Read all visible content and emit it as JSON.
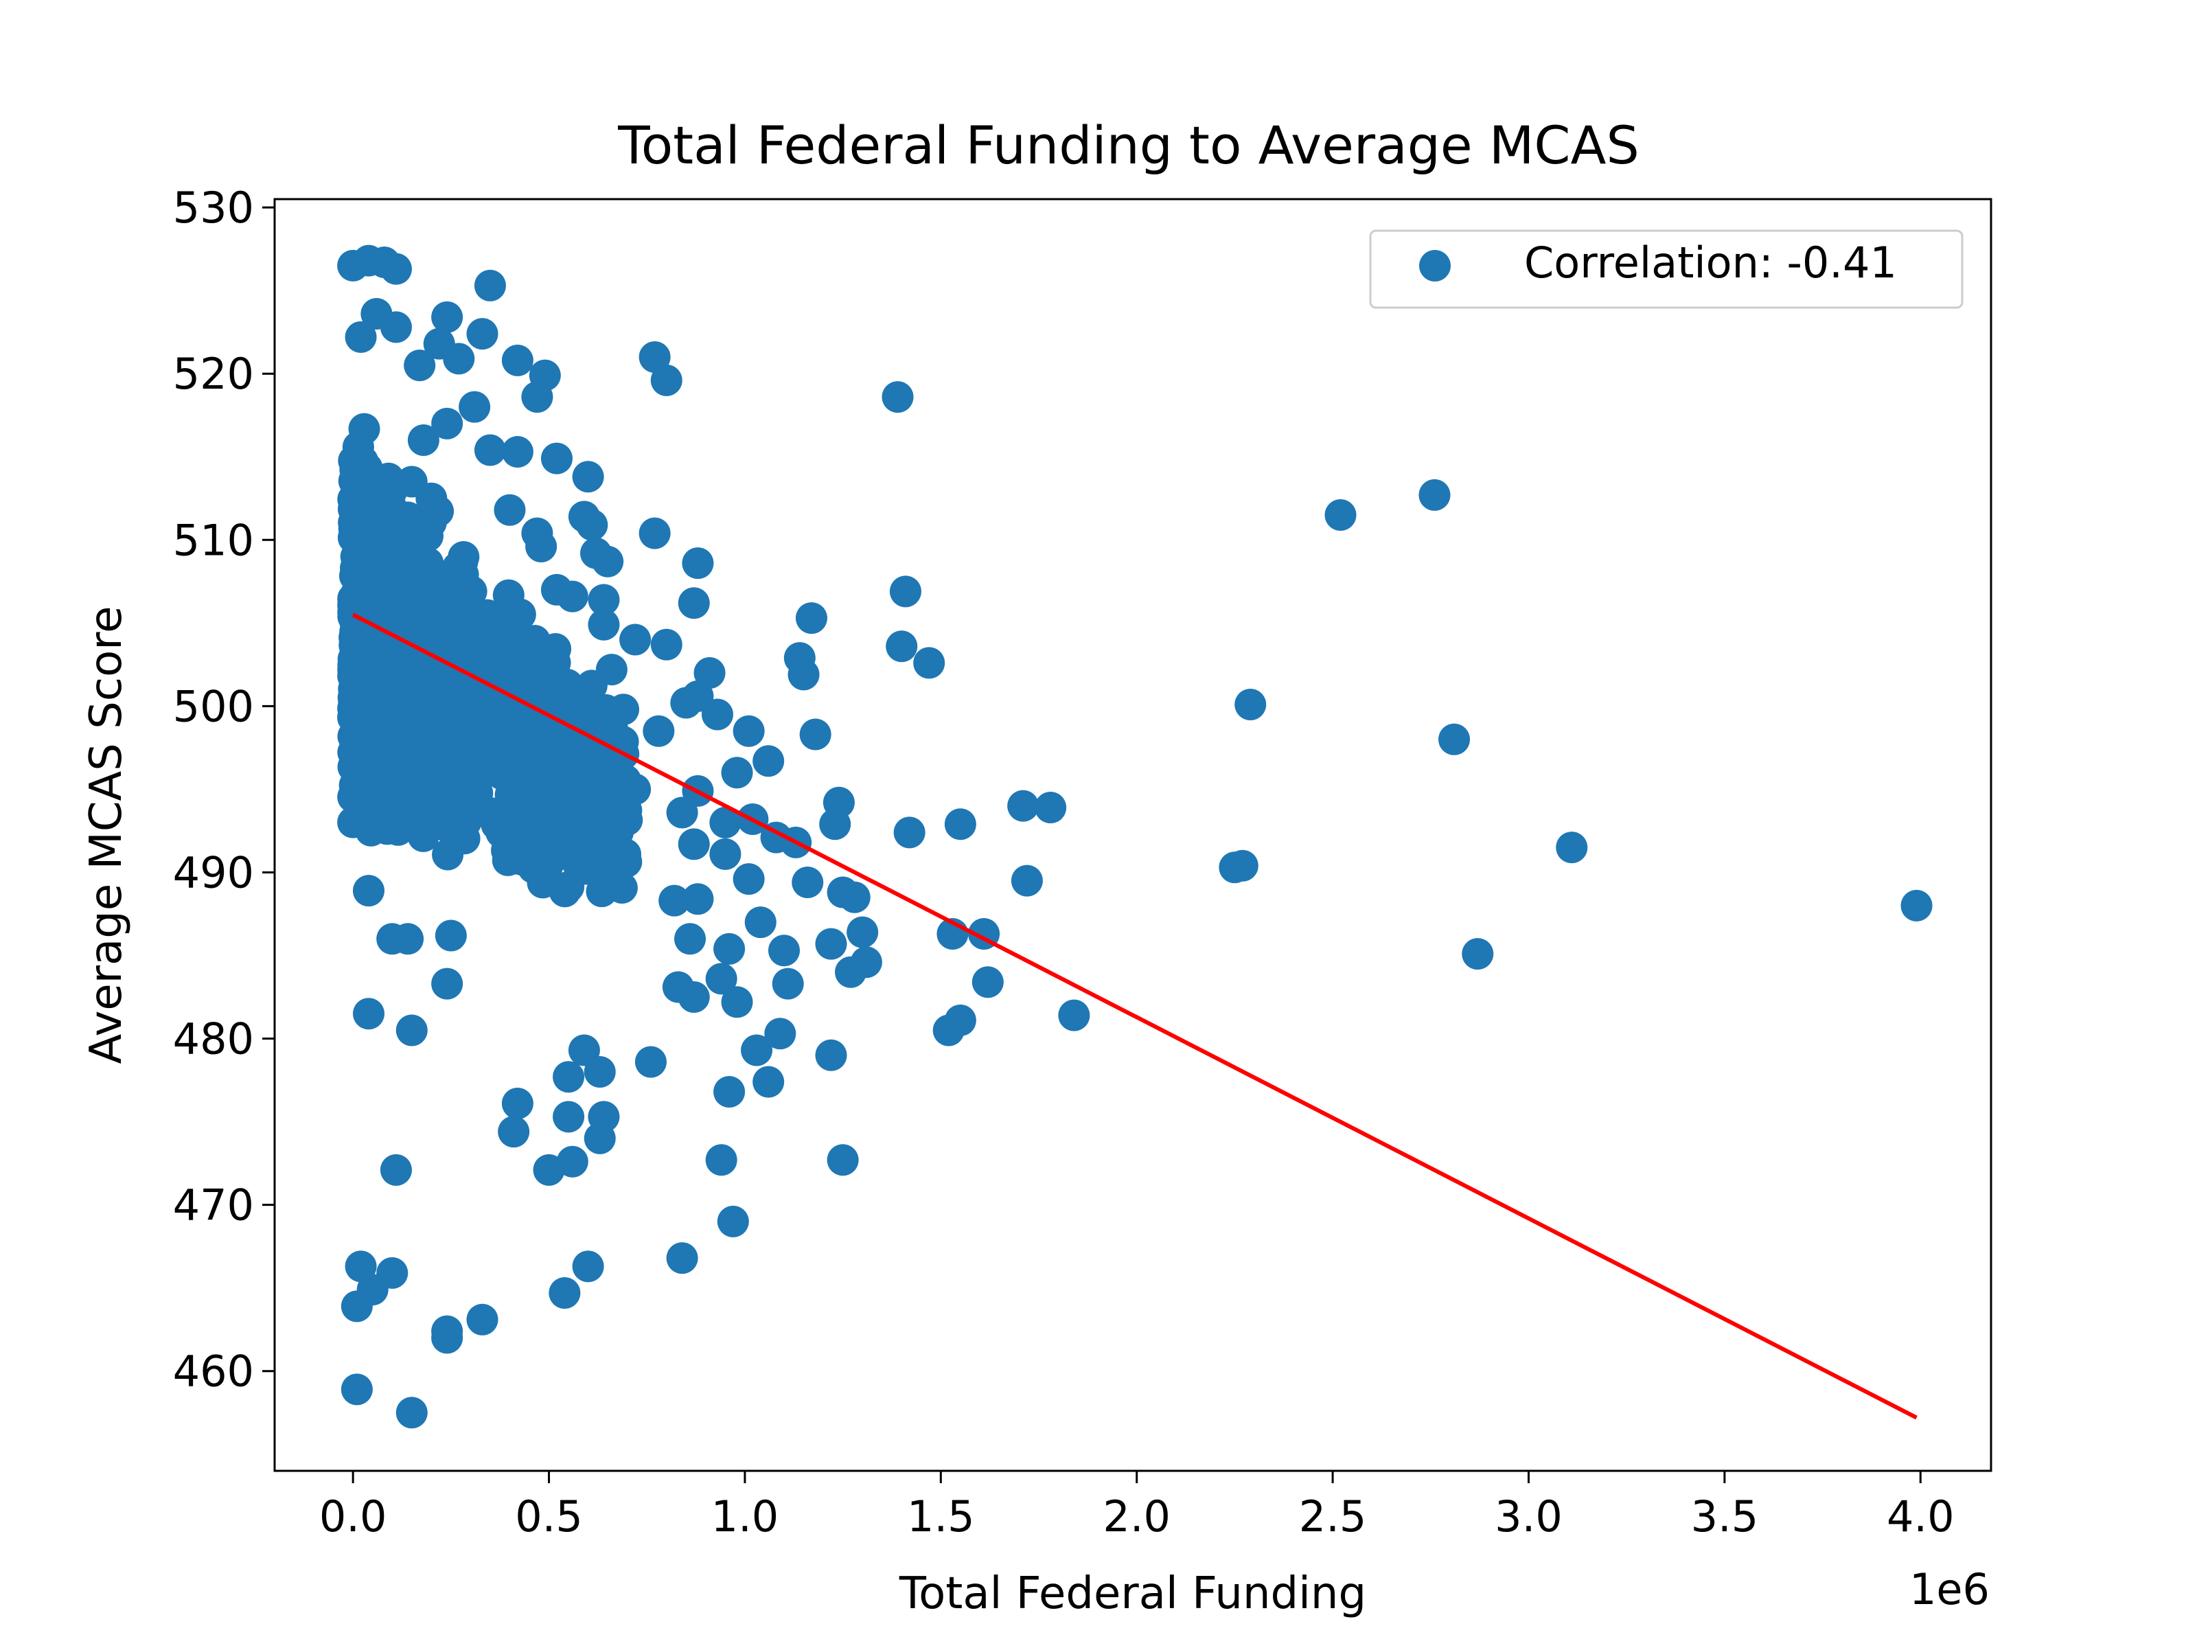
{
  "chart_data": {
    "type": "scatter",
    "title": "Total Federal Funding to Average MCAS",
    "xlabel": "Total Federal Funding",
    "ylabel": "Average MCAS Score",
    "x_offset_label": "1e6",
    "xlim": [
      -200000,
      4180000
    ],
    "ylim": [
      454,
      530.5
    ],
    "x_ticks": [
      0,
      500000,
      1000000,
      1500000,
      2000000,
      2500000,
      3000000,
      3500000,
      4000000
    ],
    "x_tick_labels": [
      "0.0",
      "0.5",
      "1.0",
      "1.5",
      "2.0",
      "2.5",
      "3.0",
      "3.5",
      "4.0"
    ],
    "y_ticks": [
      460,
      470,
      480,
      490,
      500,
      510,
      520,
      530
    ],
    "y_tick_labels": [
      "460",
      "470",
      "480",
      "490",
      "500",
      "510",
      "520",
      "530"
    ],
    "grid": false,
    "legend_position": "top-right",
    "series": [
      {
        "name": "Correlation: -0.41",
        "color": "#1f77b4",
        "points": [
          [
            0,
            526.5
          ],
          [
            40000,
            526.8
          ],
          [
            80000,
            526.7
          ],
          [
            110000,
            526.3
          ],
          [
            350000,
            525.3
          ],
          [
            60000,
            523.6
          ],
          [
            240000,
            523.4
          ],
          [
            110000,
            522.8
          ],
          [
            20000,
            522.2
          ],
          [
            330000,
            522.4
          ],
          [
            220000,
            521.8
          ],
          [
            270000,
            520.9
          ],
          [
            420000,
            520.8
          ],
          [
            770000,
            521.0
          ],
          [
            170000,
            520.5
          ],
          [
            490000,
            519.9
          ],
          [
            800000,
            519.6
          ],
          [
            470000,
            518.6
          ],
          [
            1390000,
            518.6
          ],
          [
            240000,
            517.0
          ],
          [
            310000,
            518.0
          ],
          [
            180000,
            516.0
          ],
          [
            350000,
            515.4
          ],
          [
            420000,
            515.3
          ],
          [
            520000,
            514.9
          ],
          [
            600000,
            513.8
          ],
          [
            150000,
            513.5
          ],
          [
            90000,
            513.0
          ],
          [
            200000,
            512.5
          ],
          [
            2760000,
            512.7
          ],
          [
            2520000,
            511.5
          ],
          [
            400000,
            511.8
          ],
          [
            590000,
            511.4
          ],
          [
            610000,
            510.9
          ],
          [
            770000,
            510.4
          ],
          [
            470000,
            510.4
          ],
          [
            620000,
            509.2
          ],
          [
            480000,
            509.6
          ],
          [
            880000,
            508.6
          ],
          [
            650000,
            508.7
          ],
          [
            1410000,
            506.9
          ],
          [
            520000,
            507.0
          ],
          [
            560000,
            506.6
          ],
          [
            640000,
            506.4
          ],
          [
            870000,
            506.2
          ],
          [
            1170000,
            505.3
          ],
          [
            640000,
            504.9
          ],
          [
            720000,
            504.0
          ],
          [
            800000,
            503.7
          ],
          [
            1400000,
            503.6
          ],
          [
            1140000,
            502.9
          ],
          [
            1150000,
            501.9
          ],
          [
            1470000,
            502.6
          ],
          [
            910000,
            502.0
          ],
          [
            660000,
            502.2
          ],
          [
            2290000,
            500.1
          ],
          [
            880000,
            500.6
          ],
          [
            850000,
            500.2
          ],
          [
            930000,
            499.5
          ],
          [
            690000,
            499.8
          ],
          [
            780000,
            498.5
          ],
          [
            1010000,
            498.5
          ],
          [
            1180000,
            498.3
          ],
          [
            2810000,
            498.0
          ],
          [
            1060000,
            496.7
          ],
          [
            980000,
            496.0
          ],
          [
            880000,
            494.9
          ],
          [
            720000,
            495.0
          ],
          [
            590000,
            495.5
          ],
          [
            1240000,
            494.2
          ],
          [
            1710000,
            494.0
          ],
          [
            1780000,
            493.9
          ],
          [
            840000,
            493.6
          ],
          [
            950000,
            493.0
          ],
          [
            1020000,
            493.2
          ],
          [
            1230000,
            492.9
          ],
          [
            1420000,
            492.4
          ],
          [
            1550000,
            492.9
          ],
          [
            1080000,
            492.1
          ],
          [
            3110000,
            491.5
          ],
          [
            1130000,
            491.8
          ],
          [
            870000,
            491.7
          ],
          [
            950000,
            491.1
          ],
          [
            2250000,
            490.3
          ],
          [
            2270000,
            490.4
          ],
          [
            1720000,
            489.5
          ],
          [
            1160000,
            489.4
          ],
          [
            1010000,
            489.6
          ],
          [
            1250000,
            488.8
          ],
          [
            1280000,
            488.5
          ],
          [
            3990000,
            488.0
          ],
          [
            40000,
            488.9
          ],
          [
            820000,
            488.3
          ],
          [
            880000,
            488.4
          ],
          [
            1040000,
            487.0
          ],
          [
            1300000,
            486.4
          ],
          [
            1530000,
            486.3
          ],
          [
            1610000,
            486.3
          ],
          [
            100000,
            486.0
          ],
          [
            140000,
            486.0
          ],
          [
            250000,
            486.2
          ],
          [
            860000,
            486.0
          ],
          [
            960000,
            485.4
          ],
          [
            1100000,
            485.3
          ],
          [
            1220000,
            485.7
          ],
          [
            2870000,
            485.1
          ],
          [
            1310000,
            484.6
          ],
          [
            1270000,
            484.0
          ],
          [
            940000,
            483.6
          ],
          [
            1110000,
            483.3
          ],
          [
            1620000,
            483.4
          ],
          [
            240000,
            483.3
          ],
          [
            830000,
            483.1
          ],
          [
            870000,
            482.5
          ],
          [
            980000,
            482.2
          ],
          [
            1840000,
            481.4
          ],
          [
            40000,
            481.5
          ],
          [
            1550000,
            481.1
          ],
          [
            1520000,
            480.5
          ],
          [
            150000,
            480.5
          ],
          [
            1090000,
            480.3
          ],
          [
            1030000,
            479.3
          ],
          [
            1220000,
            479.0
          ],
          [
            590000,
            479.3
          ],
          [
            760000,
            478.6
          ],
          [
            630000,
            478.0
          ],
          [
            1060000,
            477.4
          ],
          [
            550000,
            477.7
          ],
          [
            960000,
            476.8
          ],
          [
            420000,
            476.1
          ],
          [
            640000,
            475.3
          ],
          [
            550000,
            475.3
          ],
          [
            410000,
            474.4
          ],
          [
            630000,
            474.0
          ],
          [
            940000,
            472.7
          ],
          [
            1250000,
            472.7
          ],
          [
            560000,
            472.6
          ],
          [
            500000,
            472.1
          ],
          [
            110000,
            472.1
          ],
          [
            970000,
            469.0
          ],
          [
            840000,
            466.8
          ],
          [
            600000,
            466.3
          ],
          [
            20000,
            466.3
          ],
          [
            100000,
            465.9
          ],
          [
            50000,
            464.9
          ],
          [
            540000,
            464.7
          ],
          [
            10000,
            463.9
          ],
          [
            330000,
            463.1
          ],
          [
            240000,
            462.4
          ],
          [
            240000,
            462.0
          ],
          [
            10000,
            458.9
          ],
          [
            150000,
            457.5
          ]
        ]
      }
    ],
    "dense_cluster": {
      "x_range": [
        0,
        700000
      ],
      "y_range": [
        486,
        521
      ]
    },
    "trendline": {
      "color": "#ff0000",
      "points": [
        [
          0,
          505.5
        ],
        [
          3990000,
          457.2
        ]
      ]
    }
  }
}
